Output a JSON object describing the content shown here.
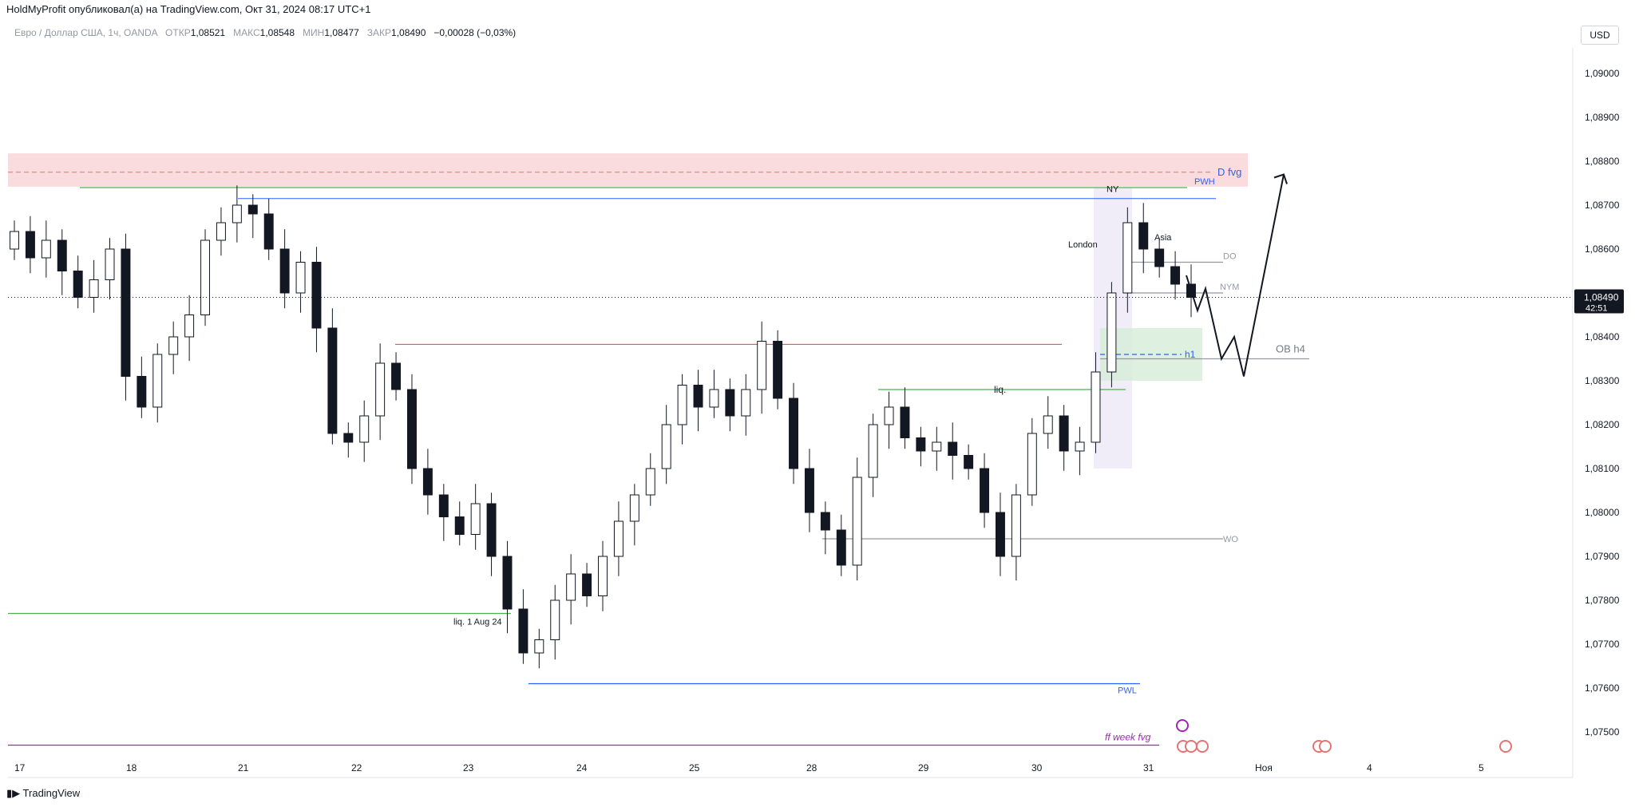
{
  "header": {
    "publisher_line": "HoldMyProfit опубликовал(а) на TradingView.com, Окт 31, 2024 08:17 UTC+1"
  },
  "symbol_bar": {
    "symbol": "Евро / Доллар США, 1ч, OANDA",
    "open_label": "ОТКР",
    "open": "1,08521",
    "high_label": "МАКС",
    "high": "1,08548",
    "low_label": "МИН",
    "low": "1,08477",
    "close_label": "ЗАКР",
    "close": "1,08490",
    "change": "−0,00028 (−0,03%)"
  },
  "currency_button": "USD",
  "footer": {
    "logo_text": "TradingView"
  },
  "colors": {
    "up_candle": "#ffffff",
    "down_candle": "#131722",
    "wick": "#131722",
    "fvg_zone": "#f8d0d3",
    "green_line": "#4caf50",
    "blue_line": "#2962ff",
    "red_line": "#f23645",
    "ob_zone": "#d6ecd7",
    "session_zone": "#ece9f7",
    "purple_line": "#9c27b0",
    "price_tag": "#131722"
  },
  "chart_data": {
    "type": "candlestick",
    "title": "",
    "ylabel": "",
    "ylim": [
      1.0746,
      1.0912
    ],
    "y_ticks": [
      "1,09000",
      "1,08900",
      "1,08800",
      "1,08700",
      "1,08600",
      "1,08500",
      "1,08400",
      "1,08300",
      "1,08200",
      "1,08100",
      "1,08000",
      "1,07900",
      "1,07800",
      "1,07700",
      "1,07600",
      "1,07500"
    ],
    "x_ticks": [
      "17",
      "18",
      "21",
      "22",
      "23",
      "24",
      "25",
      "28",
      "29",
      "30",
      "31",
      "Ноя",
      "4",
      "5"
    ],
    "last_price": "1,08490",
    "countdown": "42:51",
    "closes": [
      1.0864,
      1.0858,
      1.0862,
      1.0855,
      1.0849,
      1.0853,
      1.086,
      1.0831,
      1.0824,
      1.0836,
      1.084,
      1.0845,
      1.0862,
      1.0866,
      1.087,
      1.0868,
      1.086,
      1.085,
      1.0857,
      1.0842,
      1.0818,
      1.0816,
      1.0822,
      1.0834,
      1.0828,
      1.081,
      1.0804,
      1.0799,
      1.0795,
      1.0802,
      1.079,
      1.0778,
      1.0768,
      1.0771,
      1.078,
      1.0786,
      1.0781,
      1.079,
      1.0798,
      1.0804,
      1.081,
      1.082,
      1.0829,
      1.0824,
      1.0828,
      1.0822,
      1.0828,
      1.0839,
      1.0826,
      1.081,
      1.08,
      1.0796,
      1.0788,
      1.0808,
      1.082,
      1.0824,
      1.0817,
      1.0814,
      1.0816,
      1.0813,
      1.081,
      1.08,
      1.079,
      1.0804,
      1.0818,
      1.0822,
      1.0814,
      1.0816,
      1.0832,
      1.085,
      1.0866,
      1.086,
      1.0856,
      1.0852,
      1.0849
    ],
    "levels": [
      {
        "label": "D fvg",
        "price": 1.08775
      },
      {
        "label": "PWH",
        "price": 1.0874
      },
      {
        "label": "DO",
        "price": 1.0857
      },
      {
        "label": "NYM",
        "price": 1.085
      },
      {
        "label": "OB h4",
        "price": 1.0835
      },
      {
        "label": "h1",
        "price": 1.0836
      },
      {
        "label": "liq.",
        "price": 1.0828
      },
      {
        "label": "WO",
        "price": 1.0794
      },
      {
        "label": "liq. 1 Aug 24",
        "price": 1.0777
      },
      {
        "label": "PWL",
        "price": 1.0761
      },
      {
        "label": "ff week fvg",
        "price": 1.0747
      }
    ],
    "annotations": [
      "NY",
      "London",
      "Asia"
    ],
    "forecast_path": [
      1.0854,
      1.0846,
      1.0851,
      1.0835,
      1.084,
      1.0831,
      1.0877
    ]
  }
}
